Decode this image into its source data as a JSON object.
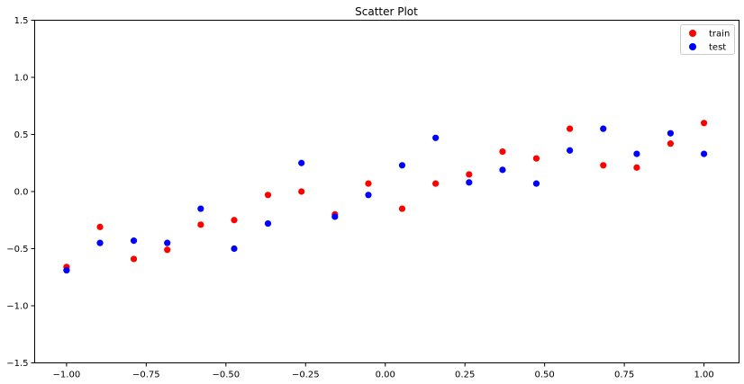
{
  "chart_data": {
    "type": "scatter",
    "title": "Scatter Plot",
    "xlabel": "",
    "ylabel": "",
    "xlim": [
      -1.1,
      1.11
    ],
    "ylim": [
      -1.5,
      1.5
    ],
    "x_ticks": [
      -1.0,
      -0.75,
      -0.5,
      -0.25,
      0.0,
      0.25,
      0.5,
      0.75,
      1.0
    ],
    "x_tick_labels": [
      "−1.00",
      "−0.75",
      "−0.50",
      "−0.25",
      "0.00",
      "0.25",
      "0.50",
      "0.75",
      "1.00"
    ],
    "y_ticks": [
      -1.5,
      -1.0,
      -0.5,
      0.0,
      0.5,
      1.0,
      1.5
    ],
    "y_tick_labels": [
      "−1.5",
      "−1.0",
      "−0.5",
      "0.0",
      "0.5",
      "1.0",
      "1.5"
    ],
    "grid": false,
    "legend": "top-right",
    "series": [
      {
        "name": "train",
        "color": "#ff0000",
        "x": [
          -1.0,
          -0.895,
          -0.789,
          -0.684,
          -0.579,
          -0.474,
          -0.368,
          -0.263,
          -0.158,
          -0.053,
          0.053,
          0.158,
          0.263,
          0.368,
          0.474,
          0.579,
          0.684,
          0.789,
          0.895,
          1.0
        ],
        "y": [
          -0.66,
          -0.31,
          -0.59,
          -0.51,
          -0.29,
          -0.25,
          -0.03,
          0.0,
          -0.2,
          0.07,
          -0.15,
          0.07,
          0.15,
          0.35,
          0.29,
          0.55,
          0.23,
          0.21,
          0.42,
          0.6
        ]
      },
      {
        "name": "test",
        "color": "#0000ff",
        "x": [
          -1.0,
          -0.895,
          -0.789,
          -0.684,
          -0.579,
          -0.474,
          -0.368,
          -0.263,
          -0.158,
          -0.053,
          0.053,
          0.158,
          0.263,
          0.368,
          0.474,
          0.579,
          0.684,
          0.789,
          0.895,
          1.0
        ],
        "y": [
          -0.69,
          -0.45,
          -0.43,
          -0.45,
          -0.15,
          -0.5,
          -0.28,
          0.25,
          -0.22,
          -0.03,
          0.23,
          0.47,
          0.08,
          0.19,
          0.07,
          0.36,
          0.55,
          0.33,
          0.51,
          0.33
        ]
      }
    ]
  }
}
